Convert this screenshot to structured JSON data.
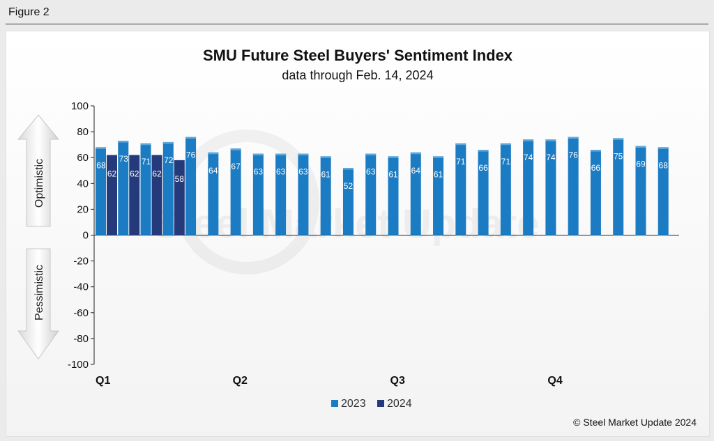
{
  "figure_label": "Figure 2",
  "copyright": "© Steel Market Update 2024",
  "watermark": "Steel Market Update",
  "chart_data": {
    "type": "bar",
    "title": "SMU Future Steel Buyers' Sentiment Index",
    "subtitle": "data through Feb. 14, 2024",
    "ylim": [
      -100,
      100
    ],
    "yticks": [
      100,
      80,
      60,
      40,
      20,
      0,
      -20,
      -40,
      -60,
      -80,
      -100
    ],
    "quarter_labels": [
      "Q1",
      "Q2",
      "Q3",
      "Q4"
    ],
    "side_labels": {
      "positive": "Optimistic",
      "negative": "Pessimistic"
    },
    "legend": "bottom-center",
    "grid": false,
    "series": [
      {
        "name": "2023",
        "color": "#1b7bc3",
        "values": [
          68,
          73,
          71,
          72,
          76,
          64,
          67,
          63,
          63,
          63,
          61,
          52,
          63,
          61,
          64,
          61,
          71,
          66,
          71,
          74,
          74,
          76,
          66,
          75,
          69,
          68
        ]
      },
      {
        "name": "2024",
        "color": "#253a7a",
        "values": [
          62,
          62,
          62,
          58
        ]
      }
    ]
  }
}
